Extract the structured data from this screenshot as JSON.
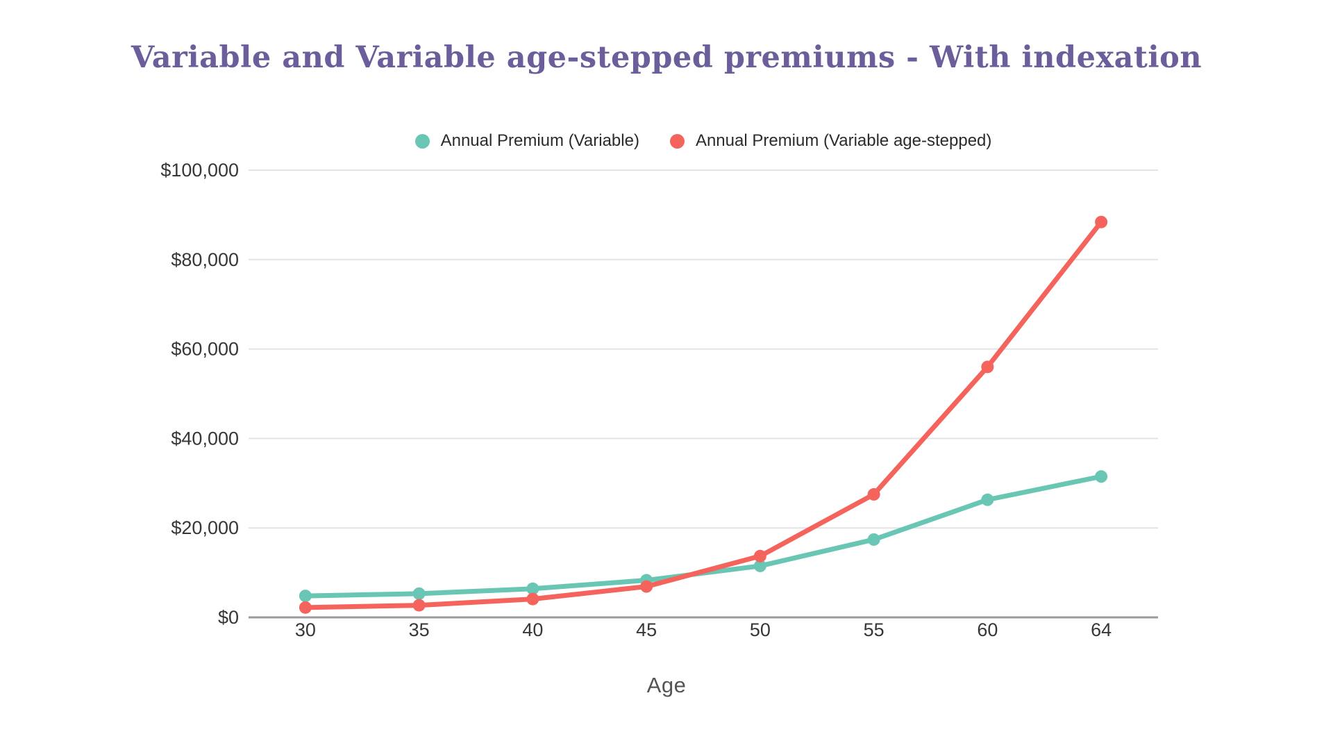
{
  "chart_data": {
    "type": "line",
    "title": "Variable and Variable age-stepped premiums - With indexation",
    "title_color": "#6B5E9B",
    "xlabel": "Age",
    "ylabel": "",
    "categories": [
      "30",
      "35",
      "40",
      "45",
      "50",
      "55",
      "60",
      "64"
    ],
    "series": [
      {
        "name": "Annual Premium (Variable)",
        "color": "#6AC6B4",
        "values": [
          4800,
          5300,
          6400,
          8300,
          11500,
          17400,
          26300,
          31500
        ]
      },
      {
        "name": "Annual Premium (Variable age-stepped)",
        "color": "#F4635C",
        "values": [
          2200,
          2700,
          4100,
          6900,
          13700,
          27500,
          56000,
          88400
        ]
      }
    ],
    "ylim": [
      0,
      100000
    ],
    "ytick_step": 20000,
    "ytick_labels": [
      "$0",
      "$20,000",
      "$40,000",
      "$60,000",
      "$80,000",
      "$100,000"
    ],
    "grid": true,
    "legend_position": "top",
    "grid_color": "#E3E3E3",
    "axis_line_color": "#9B9B9B",
    "tick_label_color": "#373737"
  }
}
